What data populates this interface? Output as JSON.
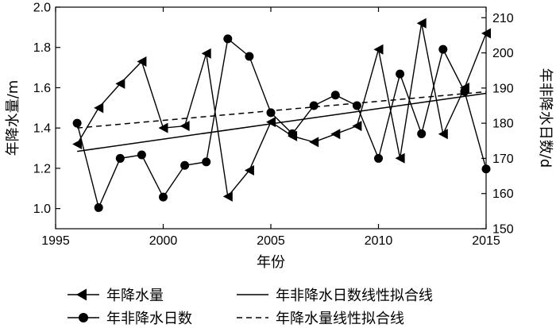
{
  "chart_data": {
    "type": "line",
    "x_axis": {
      "label": "年份",
      "range": [
        1995,
        2015
      ],
      "ticks": [
        1995,
        2000,
        2005,
        2010,
        2015
      ]
    },
    "y_axis_left": {
      "label": "年降水量/m",
      "range": [
        0.9,
        2.0
      ],
      "ticks": [
        "1.0",
        "1.2",
        "1.4",
        "1.6",
        "1.8",
        "2.0"
      ]
    },
    "y_axis_right": {
      "label": "年非降水日数/d",
      "range": [
        150,
        213
      ],
      "ticks": [
        "150",
        "160",
        "170",
        "180",
        "190",
        "200",
        "210"
      ]
    },
    "grid": false,
    "legend": {
      "placement": "bottom",
      "entries": [
        "年降水量",
        "年非降水日数线性拟合线",
        "年非降水日数",
        "年降水量线性拟合线"
      ]
    },
    "series": [
      {
        "name": "年降水量",
        "axis": "left",
        "marker": "triangle-left",
        "line": "solid",
        "x": [
          1996,
          1997,
          1998,
          1999,
          2000,
          2001,
          2002,
          2003,
          2004,
          2005,
          2006,
          2007,
          2008,
          2009,
          2010,
          2011,
          2012,
          2013,
          2014,
          2015
        ],
        "y": [
          1.32,
          1.5,
          1.62,
          1.73,
          1.4,
          1.41,
          1.77,
          1.06,
          1.19,
          1.43,
          1.36,
          1.33,
          1.37,
          1.41,
          1.79,
          1.25,
          1.92,
          1.37,
          1.6,
          1.87
        ]
      },
      {
        "name": "年非降水日数",
        "axis": "right",
        "marker": "circle",
        "line": "solid",
        "x": [
          1996,
          1997,
          1998,
          1999,
          2000,
          2001,
          2002,
          2003,
          2004,
          2005,
          2006,
          2007,
          2008,
          2009,
          2010,
          2011,
          2012,
          2013,
          2014,
          2015
        ],
        "y": [
          180,
          156,
          170,
          171,
          159,
          168,
          169,
          204,
          199,
          183,
          177,
          185,
          188,
          185,
          170,
          194,
          177,
          201,
          189,
          167
        ]
      },
      {
        "name": "年非降水日数线性拟合线",
        "axis": "right",
        "line": "solid",
        "x": [
          1996,
          2015
        ],
        "y": [
          172,
          188.5
        ]
      },
      {
        "name": "年降水量线性拟合线",
        "axis": "left",
        "line": "dashed",
        "x": [
          1996,
          2015
        ],
        "y": [
          1.4,
          1.58
        ]
      }
    ]
  }
}
